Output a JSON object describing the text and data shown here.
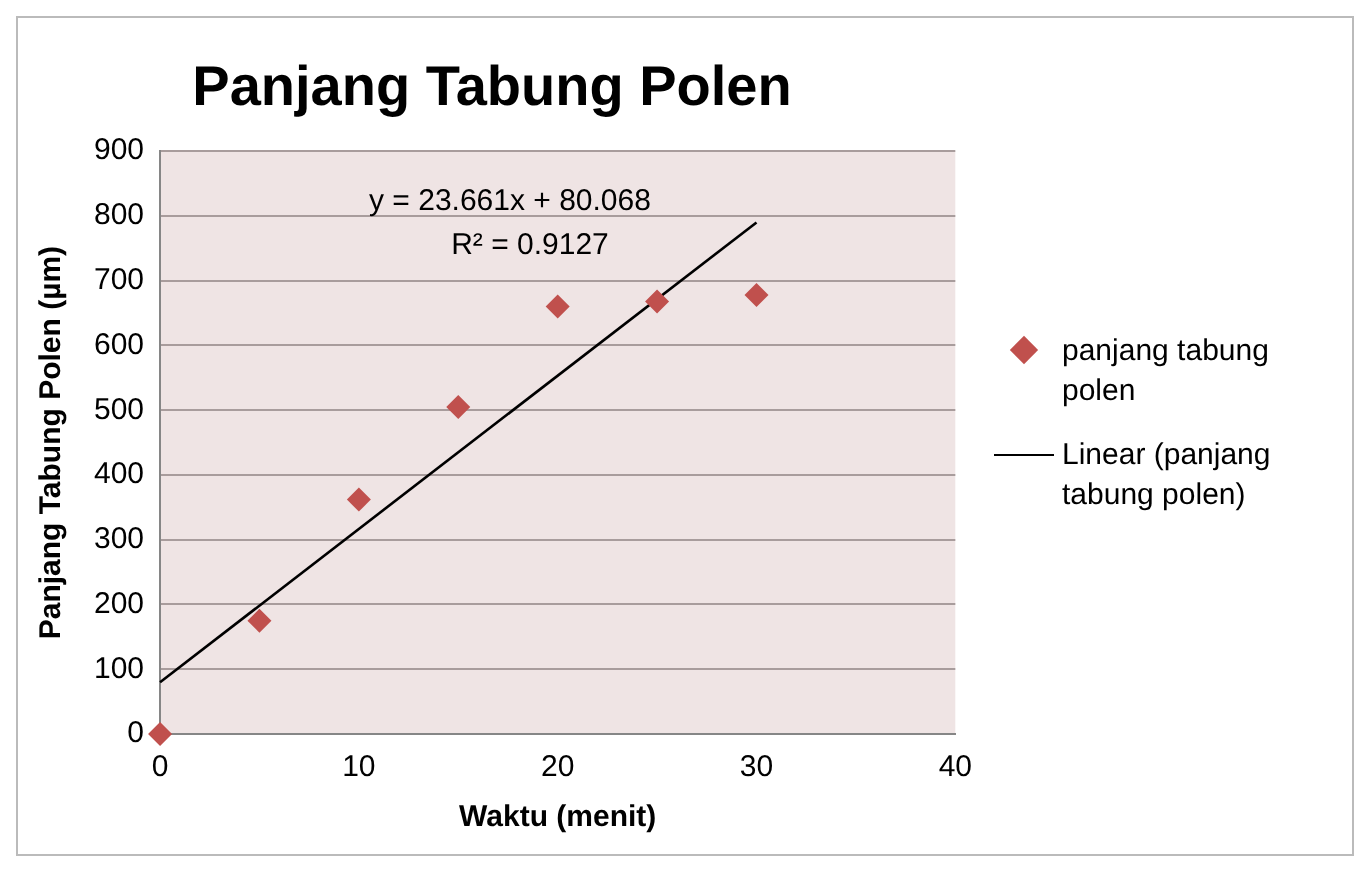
{
  "chart_data": {
    "type": "scatter",
    "title": "Panjang Tabung Polen",
    "xlabel": "Waktu (menit)",
    "ylabel": "Panjang Tabung Polen (µm)",
    "series": [
      {
        "name": "panjang tabung polen",
        "color": "#c0504d",
        "x": [
          0,
          5,
          10,
          15,
          20,
          25,
          30
        ],
        "values": [
          0,
          175,
          362,
          505,
          660,
          668,
          678
        ],
        "marker": "diamond"
      },
      {
        "name": "Linear (panjang tabung polen)",
        "type": "line",
        "color": "#000000",
        "x": [
          0,
          30
        ],
        "values": [
          80,
          790
        ],
        "marker": "none",
        "line_style": "solid"
      }
    ],
    "annotations": [
      "y = 23.661x + 80.068",
      "R² = 0.9127"
    ],
    "xlim": [
      0,
      40
    ],
    "xticks": [
      0,
      10,
      20,
      30,
      40
    ],
    "ylim": [
      0,
      900
    ],
    "yticks": [
      0,
      100,
      200,
      300,
      400,
      500,
      600,
      700,
      800,
      900
    ],
    "grid": "y",
    "legend": "right"
  }
}
